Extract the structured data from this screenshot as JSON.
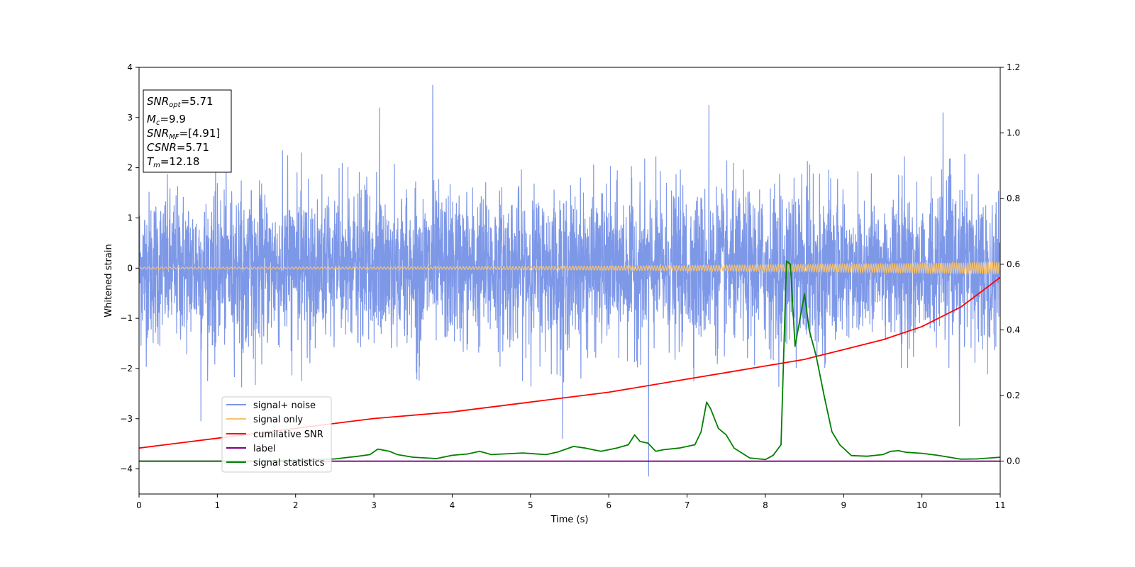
{
  "chart_data": {
    "type": "line",
    "title": "",
    "xlabel": "Time (s)",
    "ylabel": "Whitened strain",
    "xlim": [
      0,
      11
    ],
    "ylim": [
      -4.5,
      4
    ],
    "y2lim": [
      -0.1,
      1.2
    ],
    "x_ticks": [
      "0",
      "1",
      "2",
      "3",
      "4",
      "5",
      "6",
      "7",
      "8",
      "9",
      "10",
      "11"
    ],
    "y_ticks": [
      "−4",
      "−3",
      "−2",
      "−1",
      "0",
      "1",
      "2",
      "3",
      "4"
    ],
    "y2_ticks": [
      "0.0",
      "0.2",
      "0.4",
      "0.6",
      "0.8",
      "1.0",
      "1.2"
    ],
    "grid": false,
    "legend_position": "lower-left",
    "colors": {
      "signal_noise": "#7b96e8",
      "signal_only": "#f5c271",
      "cumulative_snr": "#ff0000",
      "label": "#800080",
      "signal_statistics": "#008000"
    },
    "series": [
      {
        "name": "signal+ noise",
        "axis": "left",
        "description_values": "dense noise band, typical range -1.7 to 1.7 with spikes",
        "spikes": [
          [
            3.75,
            3.65
          ],
          [
            7.28,
            3.25
          ],
          [
            3.07,
            3.2
          ],
          [
            10.27,
            3.1
          ],
          [
            6.51,
            -4.15
          ],
          [
            5.41,
            -3.4
          ],
          [
            10.48,
            -3.15
          ],
          [
            0.79,
            -3.05
          ]
        ]
      },
      {
        "name": "signal only",
        "axis": "left",
        "amplitude_start": 0.02,
        "amplitude_end": 0.12
      },
      {
        "name": "cumilative SNR",
        "axis": "right",
        "x": [
          0,
          1,
          2,
          3,
          4,
          5,
          6,
          7,
          7.5,
          8,
          8.5,
          9,
          9.5,
          10,
          10.5,
          11
        ],
        "y": [
          0.04,
          0.07,
          0.1,
          0.13,
          0.15,
          0.18,
          0.21,
          0.25,
          0.27,
          0.29,
          0.31,
          0.34,
          0.37,
          0.41,
          0.47,
          0.56
        ]
      },
      {
        "name": "label",
        "axis": "right",
        "x": [
          0,
          11
        ],
        "y": [
          0.0,
          0.0
        ]
      },
      {
        "name": "signal statistics",
        "axis": "right",
        "x": [
          0,
          0.5,
          1.0,
          1.5,
          2.0,
          2.5,
          2.8,
          2.95,
          3.05,
          3.2,
          3.3,
          3.5,
          3.8,
          4.0,
          4.2,
          4.35,
          4.5,
          4.9,
          5.2,
          5.35,
          5.55,
          5.7,
          5.9,
          6.1,
          6.25,
          6.33,
          6.4,
          6.5,
          6.6,
          6.7,
          6.9,
          7.1,
          7.18,
          7.25,
          7.3,
          7.4,
          7.5,
          7.6,
          7.8,
          8.0,
          8.1,
          8.2,
          8.27,
          8.32,
          8.38,
          8.5,
          8.56,
          8.65,
          8.75,
          8.85,
          8.95,
          9.1,
          9.3,
          9.5,
          9.6,
          9.7,
          9.8,
          10.0,
          10.2,
          10.5,
          10.7,
          11.0
        ],
        "y": [
          0.0,
          0.0,
          0.0,
          0.0,
          0.003,
          0.007,
          0.015,
          0.02,
          0.037,
          0.03,
          0.02,
          0.012,
          0.008,
          0.018,
          0.022,
          0.03,
          0.02,
          0.025,
          0.02,
          0.028,
          0.045,
          0.04,
          0.03,
          0.04,
          0.05,
          0.08,
          0.06,
          0.055,
          0.03,
          0.035,
          0.04,
          0.05,
          0.09,
          0.18,
          0.16,
          0.1,
          0.08,
          0.04,
          0.01,
          0.005,
          0.018,
          0.05,
          0.61,
          0.6,
          0.35,
          0.51,
          0.4,
          0.32,
          0.2,
          0.09,
          0.05,
          0.017,
          0.015,
          0.02,
          0.03,
          0.032,
          0.027,
          0.024,
          0.018,
          0.006,
          0.007,
          0.012
        ]
      }
    ]
  },
  "legend": [
    {
      "label": "signal+ noise",
      "color": "#7b96e8"
    },
    {
      "label": "signal only",
      "color": "#f5c271"
    },
    {
      "label": "cumilative SNR",
      "color": "#ff0000"
    },
    {
      "label": "label",
      "color": "#800080"
    },
    {
      "label": "signal statistics",
      "color": "#008000"
    }
  ],
  "info_box": {
    "snr_opt_name": "SNR",
    "snr_opt_sub": "opt",
    "snr_opt_value": "=5.71",
    "mc_name": "M",
    "mc_sub": "c",
    "mc_value": "=9.9",
    "snr_mf_name": "SNR",
    "snr_mf_sub": "MF",
    "snr_mf_value": "=[4.91]",
    "csnr_name": "CSNR",
    "csnr_value": "=5.71",
    "tm_name": "T",
    "tm_sub": "m",
    "tm_value": "=12.18"
  }
}
